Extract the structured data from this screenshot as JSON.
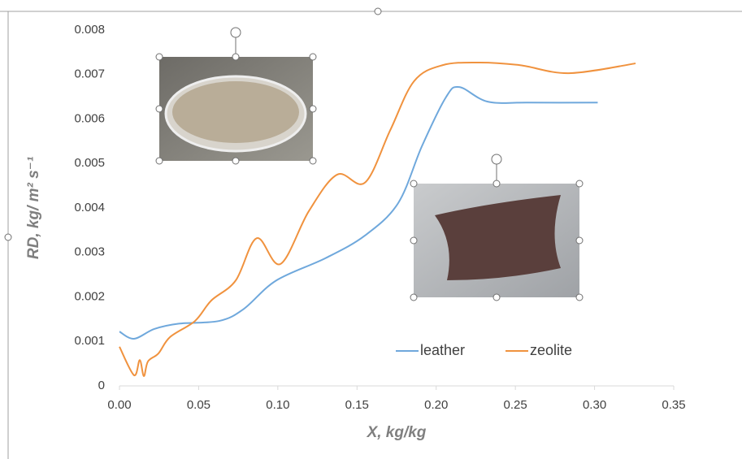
{
  "chart_data": {
    "type": "line",
    "xlabel": "X, kg/kg",
    "ylabel": "RD, kg/ m² s⁻¹",
    "xlim": [
      0,
      0.35
    ],
    "xticks": [
      {
        "value": 0,
        "label": "0.00"
      },
      0.05,
      {
        "value": 0.1,
        "label": "0.10"
      },
      0.15,
      {
        "value": 0.2,
        "label": "0.20"
      },
      0.25,
      {
        "value": 0.3,
        "label": "0.30"
      },
      0.35
    ],
    "ylim": [
      0,
      0.008
    ],
    "yticks": [
      0,
      0.001,
      0.002,
      0.003,
      0.004,
      0.005,
      0.006,
      0.007,
      0.008
    ],
    "grid": false,
    "legend": "bottom-right",
    "series": [
      {
        "name": "leather",
        "color": "#6fa8dc",
        "x": [
          0,
          0.0092,
          0.022,
          0.0375,
          0.063,
          0.0785,
          0.099,
          0.13,
          0.155,
          0.176,
          0.191,
          0.206,
          0.2145,
          0.2325,
          0.258,
          0.302
        ],
        "values": [
          0.00122,
          0.00106,
          0.00128,
          0.0014,
          0.00146,
          0.00173,
          0.00237,
          0.00287,
          0.00338,
          0.00411,
          0.00539,
          0.00648,
          0.00672,
          0.00639,
          0.00637,
          0.00637
        ]
      },
      {
        "name": "zeolite",
        "color": "#f0923e",
        "x": [
          0,
          0.0092,
          0.0128,
          0.0154,
          0.018,
          0.0246,
          0.032,
          0.0477,
          0.058,
          0.0734,
          0.0867,
          0.1016,
          0.1196,
          0.1375,
          0.155,
          0.171,
          0.186,
          0.204,
          0.2273,
          0.253,
          0.2838,
          0.3259
        ],
        "values": [
          0.00088,
          0.00024,
          0.00058,
          0.00022,
          0.00055,
          0.00073,
          0.0011,
          0.00146,
          0.00192,
          0.00237,
          0.00332,
          0.00274,
          0.00393,
          0.00475,
          0.00457,
          0.00575,
          0.00685,
          0.00721,
          0.00727,
          0.00721,
          0.00703,
          0.00725
        ]
      }
    ]
  }
}
